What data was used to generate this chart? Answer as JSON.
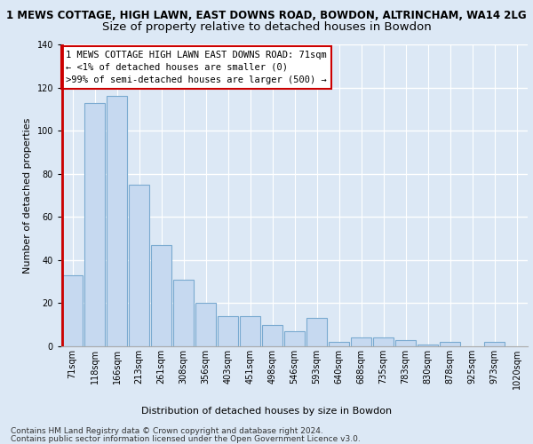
{
  "title": "1 MEWS COTTAGE, HIGH LAWN, EAST DOWNS ROAD, BOWDON, ALTRINCHAM, WA14 2LG",
  "subtitle": "Size of property relative to detached houses in Bowdon",
  "xlabel": "Distribution of detached houses by size in Bowdon",
  "ylabel": "Number of detached properties",
  "bar_color": "#c6d9f0",
  "bar_edge_color": "#7aaad0",
  "highlight_color": "#c6d9f0",
  "highlight_edge_color": "#7aaad0",
  "red_line_color": "#cc0000",
  "annotation_box_color": "#ffffff",
  "annotation_box_edge": "#cc0000",
  "categories": [
    "71sqm",
    "118sqm",
    "166sqm",
    "213sqm",
    "261sqm",
    "308sqm",
    "356sqm",
    "403sqm",
    "451sqm",
    "498sqm",
    "546sqm",
    "593sqm",
    "640sqm",
    "688sqm",
    "735sqm",
    "783sqm",
    "830sqm",
    "878sqm",
    "925sqm",
    "973sqm",
    "1020sqm"
  ],
  "values": [
    33,
    113,
    116,
    75,
    47,
    31,
    20,
    14,
    14,
    10,
    7,
    13,
    2,
    4,
    4,
    3,
    1,
    2,
    0,
    2,
    0
  ],
  "highlight_index": 0,
  "annotation_title": "1 MEWS COTTAGE HIGH LAWN EAST DOWNS ROAD: 71sqm",
  "annotation_line1": "← <1% of detached houses are smaller (0)",
  "annotation_line2": ">99% of semi-detached houses are larger (500) →",
  "ylim": [
    0,
    140
  ],
  "yticks": [
    0,
    20,
    40,
    60,
    80,
    100,
    120,
    140
  ],
  "footer_line1": "Contains HM Land Registry data © Crown copyright and database right 2024.",
  "footer_line2": "Contains public sector information licensed under the Open Government Licence v3.0.",
  "background_color": "#dce8f5",
  "plot_background": "#dce8f5",
  "grid_color": "#ffffff",
  "title_fontsize": 8.5,
  "subtitle_fontsize": 9.5,
  "axis_label_fontsize": 8,
  "tick_fontsize": 7,
  "annotation_fontsize": 7.5,
  "footer_fontsize": 6.5
}
